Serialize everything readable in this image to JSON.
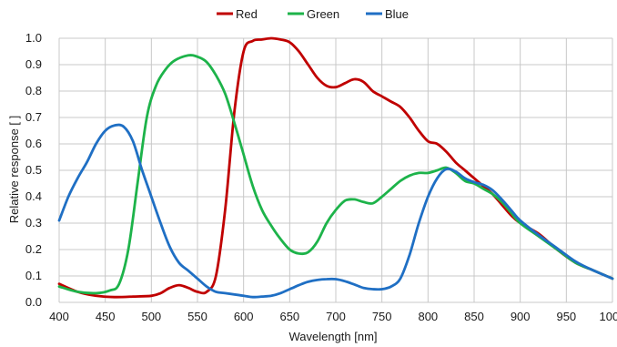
{
  "chart_data": {
    "type": "line",
    "title": "",
    "xlabel": "Wavelength [nm]",
    "ylabel": "Relative response [ ]",
    "xlim": [
      400,
      1000
    ],
    "ylim": [
      0,
      1.0
    ],
    "grid": true,
    "legend_position": "top-center",
    "x_ticks": [
      "400",
      "450",
      "500",
      "550",
      "600",
      "650",
      "700",
      "750",
      "800",
      "850",
      "900",
      "950",
      "1000"
    ],
    "y_ticks": [
      "0.0",
      "0.1",
      "0.2",
      "0.3",
      "0.4",
      "0.5",
      "0.6",
      "0.7",
      "0.8",
      "0.9",
      "1.0"
    ],
    "series": [
      {
        "name": "Red",
        "color": "#c00000",
        "points": [
          [
            400,
            0.07
          ],
          [
            420,
            0.04
          ],
          [
            440,
            0.025
          ],
          [
            460,
            0.02
          ],
          [
            480,
            0.022
          ],
          [
            500,
            0.025
          ],
          [
            510,
            0.035
          ],
          [
            520,
            0.055
          ],
          [
            530,
            0.065
          ],
          [
            540,
            0.055
          ],
          [
            550,
            0.04
          ],
          [
            560,
            0.04
          ],
          [
            570,
            0.1
          ],
          [
            580,
            0.35
          ],
          [
            590,
            0.72
          ],
          [
            600,
            0.95
          ],
          [
            610,
            0.99
          ],
          [
            620,
            0.995
          ],
          [
            630,
            1.0
          ],
          [
            640,
            0.995
          ],
          [
            650,
            0.985
          ],
          [
            660,
            0.95
          ],
          [
            670,
            0.9
          ],
          [
            680,
            0.85
          ],
          [
            690,
            0.82
          ],
          [
            700,
            0.815
          ],
          [
            710,
            0.83
          ],
          [
            720,
            0.845
          ],
          [
            730,
            0.835
          ],
          [
            740,
            0.8
          ],
          [
            750,
            0.78
          ],
          [
            760,
            0.76
          ],
          [
            770,
            0.74
          ],
          [
            780,
            0.7
          ],
          [
            790,
            0.65
          ],
          [
            800,
            0.61
          ],
          [
            810,
            0.6
          ],
          [
            820,
            0.57
          ],
          [
            830,
            0.53
          ],
          [
            840,
            0.5
          ],
          [
            850,
            0.47
          ],
          [
            860,
            0.44
          ],
          [
            870,
            0.41
          ],
          [
            880,
            0.37
          ],
          [
            890,
            0.33
          ],
          [
            900,
            0.3
          ],
          [
            920,
            0.26
          ],
          [
            940,
            0.2
          ],
          [
            960,
            0.15
          ],
          [
            980,
            0.12
          ],
          [
            1000,
            0.09
          ]
        ]
      },
      {
        "name": "Green",
        "color": "#1db34a",
        "points": [
          [
            400,
            0.06
          ],
          [
            420,
            0.04
          ],
          [
            440,
            0.035
          ],
          [
            455,
            0.045
          ],
          [
            465,
            0.07
          ],
          [
            475,
            0.2
          ],
          [
            485,
            0.45
          ],
          [
            495,
            0.7
          ],
          [
            505,
            0.82
          ],
          [
            515,
            0.88
          ],
          [
            525,
            0.915
          ],
          [
            540,
            0.935
          ],
          [
            550,
            0.93
          ],
          [
            560,
            0.91
          ],
          [
            570,
            0.86
          ],
          [
            580,
            0.79
          ],
          [
            590,
            0.68
          ],
          [
            600,
            0.56
          ],
          [
            610,
            0.44
          ],
          [
            620,
            0.35
          ],
          [
            630,
            0.29
          ],
          [
            640,
            0.24
          ],
          [
            650,
            0.2
          ],
          [
            660,
            0.185
          ],
          [
            670,
            0.19
          ],
          [
            680,
            0.23
          ],
          [
            690,
            0.3
          ],
          [
            700,
            0.35
          ],
          [
            710,
            0.385
          ],
          [
            720,
            0.39
          ],
          [
            730,
            0.38
          ],
          [
            740,
            0.375
          ],
          [
            750,
            0.4
          ],
          [
            760,
            0.43
          ],
          [
            770,
            0.46
          ],
          [
            780,
            0.48
          ],
          [
            790,
            0.49
          ],
          [
            800,
            0.49
          ],
          [
            810,
            0.5
          ],
          [
            820,
            0.51
          ],
          [
            830,
            0.49
          ],
          [
            840,
            0.46
          ],
          [
            850,
            0.45
          ],
          [
            860,
            0.43
          ],
          [
            870,
            0.41
          ],
          [
            880,
            0.38
          ],
          [
            890,
            0.34
          ],
          [
            900,
            0.3
          ],
          [
            920,
            0.25
          ],
          [
            940,
            0.2
          ],
          [
            960,
            0.15
          ],
          [
            980,
            0.12
          ],
          [
            1000,
            0.09
          ]
        ]
      },
      {
        "name": "Blue",
        "color": "#1f6fc4",
        "points": [
          [
            400,
            0.31
          ],
          [
            410,
            0.4
          ],
          [
            420,
            0.47
          ],
          [
            430,
            0.53
          ],
          [
            440,
            0.6
          ],
          [
            450,
            0.65
          ],
          [
            460,
            0.67
          ],
          [
            470,
            0.665
          ],
          [
            480,
            0.61
          ],
          [
            490,
            0.5
          ],
          [
            500,
            0.4
          ],
          [
            510,
            0.3
          ],
          [
            520,
            0.21
          ],
          [
            530,
            0.15
          ],
          [
            540,
            0.12
          ],
          [
            550,
            0.09
          ],
          [
            560,
            0.06
          ],
          [
            570,
            0.04
          ],
          [
            580,
            0.035
          ],
          [
            600,
            0.025
          ],
          [
            610,
            0.02
          ],
          [
            620,
            0.022
          ],
          [
            630,
            0.025
          ],
          [
            640,
            0.035
          ],
          [
            650,
            0.05
          ],
          [
            660,
            0.065
          ],
          [
            670,
            0.078
          ],
          [
            680,
            0.085
          ],
          [
            690,
            0.088
          ],
          [
            700,
            0.088
          ],
          [
            710,
            0.08
          ],
          [
            720,
            0.068
          ],
          [
            730,
            0.055
          ],
          [
            740,
            0.05
          ],
          [
            750,
            0.05
          ],
          [
            760,
            0.06
          ],
          [
            770,
            0.09
          ],
          [
            780,
            0.18
          ],
          [
            790,
            0.3
          ],
          [
            800,
            0.4
          ],
          [
            810,
            0.47
          ],
          [
            820,
            0.505
          ],
          [
            830,
            0.495
          ],
          [
            840,
            0.47
          ],
          [
            850,
            0.455
          ],
          [
            860,
            0.445
          ],
          [
            870,
            0.425
          ],
          [
            880,
            0.39
          ],
          [
            890,
            0.35
          ],
          [
            900,
            0.31
          ],
          [
            920,
            0.255
          ],
          [
            940,
            0.205
          ],
          [
            960,
            0.155
          ],
          [
            980,
            0.12
          ],
          [
            1000,
            0.09
          ]
        ]
      }
    ]
  }
}
